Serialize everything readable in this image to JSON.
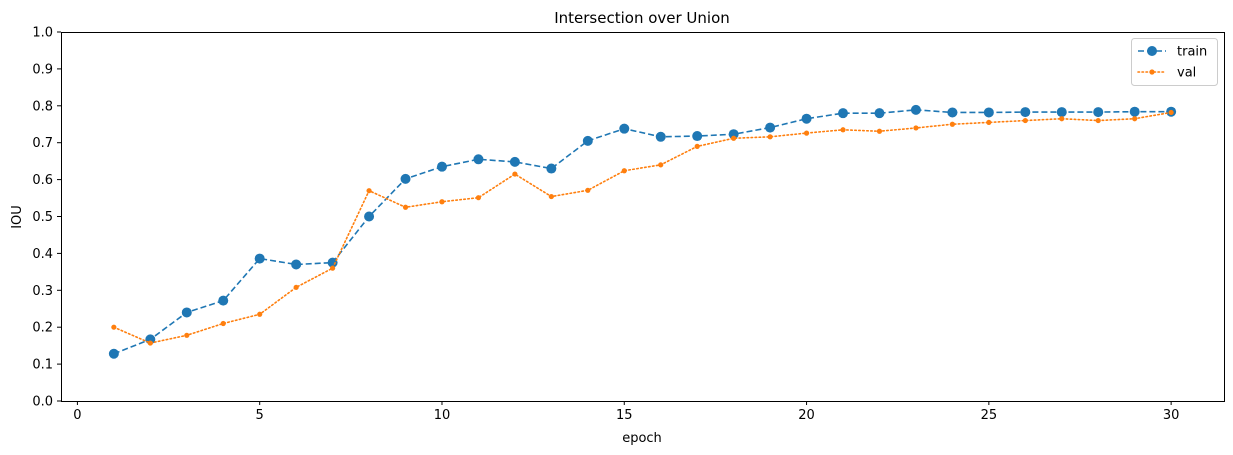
{
  "chart_data": {
    "type": "line",
    "title": "Intersection over Union",
    "xlabel": "epoch",
    "ylabel": "IOU",
    "xlim": [
      -0.45,
      31.45
    ],
    "ylim": [
      0.0,
      1.0
    ],
    "xticks": [
      0,
      5,
      10,
      15,
      20,
      25,
      30
    ],
    "yticks": [
      0.0,
      0.1,
      0.2,
      0.3,
      0.4,
      0.5,
      0.6,
      0.7,
      0.8,
      0.9,
      1.0
    ],
    "grid": false,
    "legend_position": "top-right",
    "x": [
      1,
      2,
      3,
      4,
      5,
      6,
      7,
      8,
      9,
      10,
      11,
      12,
      13,
      14,
      15,
      16,
      17,
      18,
      19,
      20,
      21,
      22,
      23,
      24,
      25,
      26,
      27,
      28,
      29,
      30
    ],
    "series": [
      {
        "name": "train",
        "color": "#1f77b4",
        "line_style": "dashed",
        "marker": "circle",
        "values": [
          0.128,
          0.167,
          0.24,
          0.272,
          0.386,
          0.37,
          0.375,
          0.5,
          0.602,
          0.635,
          0.655,
          0.648,
          0.63,
          0.705,
          0.738,
          0.716,
          0.718,
          0.723,
          0.741,
          0.765,
          0.78,
          0.78,
          0.789,
          0.782,
          0.782,
          0.783,
          0.783,
          0.783,
          0.784,
          0.784
        ]
      },
      {
        "name": "val",
        "color": "#ff7f0e",
        "line_style": "dotted",
        "marker": "small-circle",
        "values": [
          0.2,
          0.157,
          0.178,
          0.21,
          0.235,
          0.308,
          0.36,
          0.57,
          0.525,
          0.54,
          0.551,
          0.615,
          0.554,
          0.571,
          0.624,
          0.64,
          0.69,
          0.712,
          0.716,
          0.726,
          0.735,
          0.731,
          0.74,
          0.75,
          0.755,
          0.76,
          0.765,
          0.76,
          0.765,
          0.782
        ]
      }
    ]
  }
}
